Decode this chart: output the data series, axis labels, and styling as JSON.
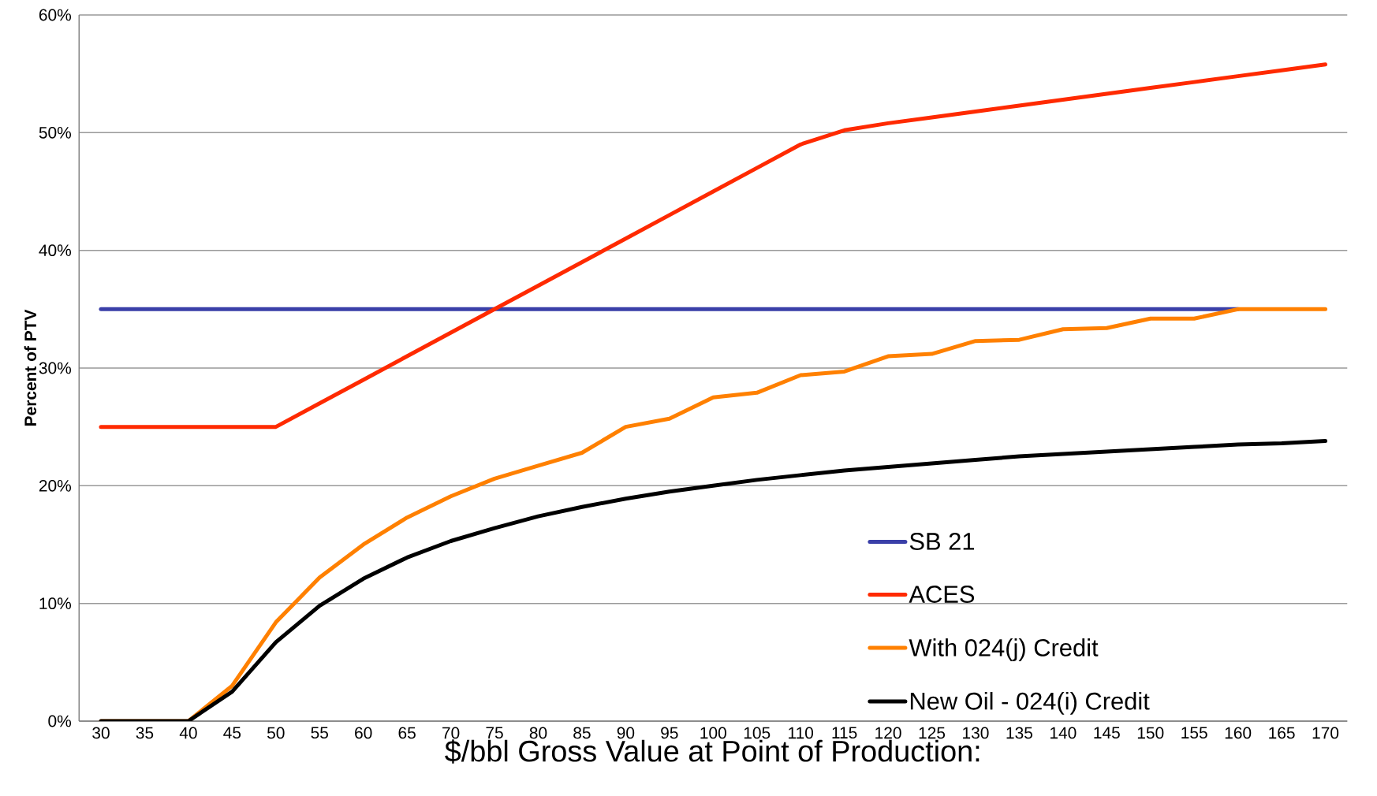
{
  "chart_data": {
    "type": "line",
    "xlabel": "$/bbl Gross Value at Point of Production:",
    "ylabel": "Percent of PTV",
    "categories": [
      "30",
      "35",
      "40",
      "45",
      "50",
      "55",
      "60",
      "65",
      "70",
      "75",
      "80",
      "85",
      "90",
      "95",
      "100",
      "105",
      "110",
      "115",
      "120",
      "125",
      "130",
      "135",
      "140",
      "145",
      "150",
      "155",
      "160",
      "165",
      "170"
    ],
    "series": [
      {
        "name": "SB 21",
        "color": "#3a3fa8",
        "values": [
          35,
          35,
          35,
          35,
          35,
          35,
          35,
          35,
          35,
          35,
          35,
          35,
          35,
          35,
          35,
          35,
          35,
          35,
          35,
          35,
          35,
          35,
          35,
          35,
          35,
          35,
          35,
          null,
          null
        ]
      },
      {
        "name": "ACES",
        "color": "#ff2a00",
        "values": [
          25,
          25,
          25,
          25,
          25,
          27,
          29,
          31,
          33,
          35,
          37,
          39,
          41,
          43,
          45,
          47,
          49,
          50.2,
          50.8,
          51.3,
          51.8,
          52.3,
          52.8,
          53.3,
          53.8,
          54.3,
          54.8,
          55.3,
          55.8
        ]
      },
      {
        "name": "With 024(j) Credit",
        "color": "#ff8000",
        "values": [
          0,
          0,
          0,
          3.0,
          8.4,
          12.2,
          15.0,
          17.3,
          19.1,
          20.6,
          21.7,
          22.8,
          25.0,
          25.7,
          27.5,
          27.9,
          29.4,
          29.7,
          31.0,
          31.2,
          32.3,
          32.4,
          33.3,
          33.4,
          34.2,
          34.2,
          35,
          35,
          35
        ]
      },
      {
        "name": "New Oil - 024(i) Credit",
        "color": "#000000",
        "values": [
          0,
          0,
          0,
          2.5,
          6.7,
          9.8,
          12.1,
          13.9,
          15.3,
          16.4,
          17.4,
          18.2,
          18.9,
          19.5,
          20.0,
          20.5,
          20.9,
          21.3,
          21.6,
          21.9,
          22.2,
          22.5,
          22.7,
          22.9,
          23.1,
          23.3,
          23.5,
          23.6,
          23.8
        ]
      }
    ],
    "ylim": [
      0,
      60
    ],
    "yticks": [
      {
        "value": 0,
        "label": "0%"
      },
      {
        "value": 10,
        "label": "10%"
      },
      {
        "value": 20,
        "label": "20%"
      },
      {
        "value": 30,
        "label": "30%"
      },
      {
        "value": 40,
        "label": "40%"
      },
      {
        "value": 50,
        "label": "50%"
      },
      {
        "value": 60,
        "label": "60%"
      }
    ],
    "grid": "y",
    "legend": "bottom right",
    "line_style": "solid"
  }
}
